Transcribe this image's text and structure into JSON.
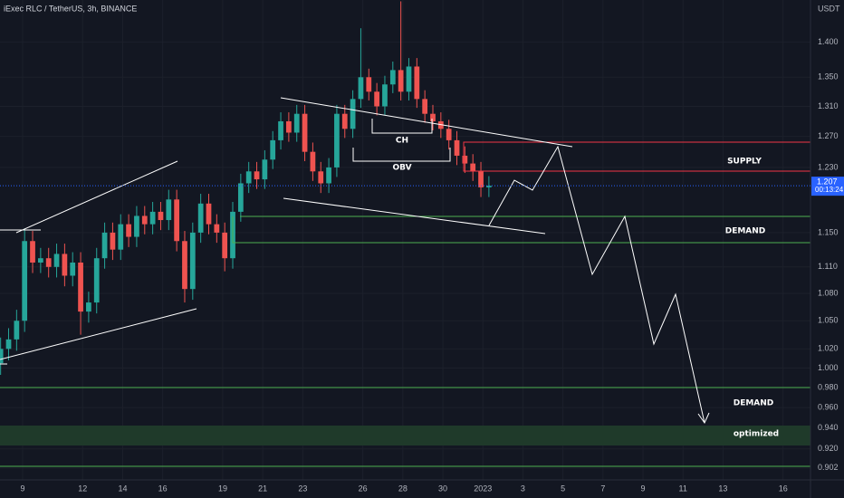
{
  "chart_data": {
    "type": "candlestick",
    "title": "iExec RLC / TetherUS, 3h, BINANCE",
    "axis_unit": "USDT",
    "log_scale": true,
    "grid": true,
    "up_color": "#26a69a",
    "down_color": "#ef5350",
    "last_price": 1.207,
    "countdown": "00:13:24",
    "annotations": {
      "supply": "SUPPLY",
      "demand": "DEMAND",
      "demand_low": "DEMAND",
      "optimized": "optimized",
      "ch": "CH",
      "obv": "OBV"
    },
    "ylim": [
      0.891,
      1.462
    ],
    "yticks": [
      {
        "value": 1.4,
        "label": "1.400"
      },
      {
        "value": 1.35,
        "label": "1.350"
      },
      {
        "value": 1.31,
        "label": "1.310"
      },
      {
        "value": 1.27,
        "label": "1.270"
      },
      {
        "value": 1.23,
        "label": "1.230"
      },
      {
        "value": 1.15,
        "label": "1.150"
      },
      {
        "value": 1.11,
        "label": "1.110"
      },
      {
        "value": 1.08,
        "label": "1.080"
      },
      {
        "value": 1.05,
        "label": "1.050"
      },
      {
        "value": 1.02,
        "label": "1.020"
      },
      {
        "value": 1.0,
        "label": "1.000"
      },
      {
        "value": 0.98,
        "label": "0.980"
      },
      {
        "value": 0.96,
        "label": "0.960"
      },
      {
        "value": 0.94,
        "label": "0.940"
      },
      {
        "value": 0.92,
        "label": "0.920"
      },
      {
        "value": 0.902,
        "label": "0.902"
      }
    ],
    "xlim": [
      -1.13,
      39.37
    ],
    "xticks": [
      {
        "value": 0,
        "label": "9"
      },
      {
        "value": 3,
        "label": "12"
      },
      {
        "value": 5,
        "label": "14"
      },
      {
        "value": 7,
        "label": "16"
      },
      {
        "value": 10,
        "label": "19"
      },
      {
        "value": 12,
        "label": "21"
      },
      {
        "value": 14,
        "label": "23"
      },
      {
        "value": 17,
        "label": "26"
      },
      {
        "value": 19,
        "label": "28"
      },
      {
        "value": 21,
        "label": "30"
      },
      {
        "value": 23,
        "label": "2023"
      },
      {
        "value": 25,
        "label": "3"
      },
      {
        "value": 27,
        "label": "5"
      },
      {
        "value": 29,
        "label": "7"
      },
      {
        "value": 31,
        "label": "9"
      },
      {
        "value": 33,
        "label": "11"
      },
      {
        "value": 35,
        "label": "13"
      },
      {
        "value": 38,
        "label": "16"
      }
    ],
    "x": [
      -1.1,
      -0.7,
      -0.3,
      0.1,
      0.5,
      0.9,
      1.3,
      1.7,
      2.1,
      2.5,
      2.9,
      3.3,
      3.7,
      4.1,
      4.5,
      4.9,
      5.3,
      5.7,
      6.1,
      6.5,
      6.9,
      7.3,
      7.7,
      8.1,
      8.5,
      8.9,
      9.3,
      9.7,
      10.1,
      10.5,
      10.9,
      11.3,
      11.7,
      12.1,
      12.5,
      12.9,
      13.3,
      13.7,
      14.1,
      14.5,
      14.9,
      15.3,
      15.7,
      16.1,
      16.5,
      16.9,
      17.3,
      17.7,
      18.1,
      18.5,
      18.9,
      19.3,
      19.7,
      20.1,
      20.5,
      20.9,
      21.3,
      21.7,
      22.1,
      22.5,
      22.9,
      23.3
    ],
    "open": [
      1.005,
      1.02,
      1.03,
      1.05,
      1.14,
      1.115,
      1.12,
      1.11,
      1.125,
      1.1,
      1.115,
      1.06,
      1.07,
      1.12,
      1.15,
      1.13,
      1.16,
      1.145,
      1.17,
      1.16,
      1.175,
      1.165,
      1.19,
      1.14,
      1.085,
      1.15,
      1.185,
      1.16,
      1.15,
      1.12,
      1.175,
      1.21,
      1.225,
      1.215,
      1.24,
      1.265,
      1.29,
      1.275,
      1.3,
      1.25,
      1.225,
      1.21,
      1.23,
      1.3,
      1.28,
      1.32,
      1.35,
      1.33,
      1.31,
      1.34,
      1.36,
      1.33,
      1.365,
      1.32,
      1.3,
      1.29,
      1.28,
      1.265,
      1.245,
      1.235,
      1.225,
      1.205
    ],
    "high": [
      1.032,
      1.042,
      1.062,
      1.155,
      1.152,
      1.132,
      1.132,
      1.137,
      1.137,
      1.127,
      1.127,
      1.082,
      1.132,
      1.162,
      1.162,
      1.172,
      1.172,
      1.182,
      1.182,
      1.187,
      1.187,
      1.202,
      1.202,
      1.152,
      1.162,
      1.197,
      1.197,
      1.172,
      1.162,
      1.187,
      1.222,
      1.237,
      1.237,
      1.252,
      1.277,
      1.302,
      1.302,
      1.312,
      1.312,
      1.262,
      1.237,
      1.242,
      1.312,
      1.312,
      1.332,
      1.42,
      1.362,
      1.342,
      1.352,
      1.372,
      1.46,
      1.377,
      1.377,
      1.332,
      1.312,
      1.302,
      1.292,
      1.277,
      1.257,
      1.247,
      1.237,
      1.219
    ],
    "low": [
      0.993,
      1.008,
      1.018,
      1.038,
      1.103,
      1.103,
      1.098,
      1.098,
      1.088,
      1.088,
      1.035,
      1.048,
      1.058,
      1.108,
      1.118,
      1.118,
      1.133,
      1.133,
      1.148,
      1.148,
      1.153,
      1.153,
      1.128,
      1.07,
      1.073,
      1.138,
      1.148,
      1.138,
      1.105,
      1.108,
      1.163,
      1.198,
      1.203,
      1.203,
      1.228,
      1.253,
      1.263,
      1.263,
      1.238,
      1.213,
      1.198,
      1.198,
      1.218,
      1.268,
      1.268,
      1.308,
      1.318,
      1.298,
      1.298,
      1.328,
      1.318,
      1.318,
      1.308,
      1.288,
      1.278,
      1.268,
      1.253,
      1.233,
      1.223,
      1.213,
      1.193,
      1.193
    ],
    "close": [
      1.02,
      1.03,
      1.05,
      1.14,
      1.115,
      1.12,
      1.11,
      1.125,
      1.1,
      1.115,
      1.06,
      1.07,
      1.12,
      1.15,
      1.13,
      1.16,
      1.145,
      1.17,
      1.16,
      1.175,
      1.165,
      1.19,
      1.14,
      1.085,
      1.15,
      1.185,
      1.16,
      1.15,
      1.12,
      1.175,
      1.21,
      1.225,
      1.215,
      1.24,
      1.265,
      1.29,
      1.275,
      1.3,
      1.25,
      1.225,
      1.21,
      1.23,
      1.3,
      1.28,
      1.32,
      1.35,
      1.33,
      1.31,
      1.34,
      1.36,
      1.33,
      1.365,
      1.32,
      1.3,
      1.29,
      1.28,
      1.265,
      1.245,
      1.235,
      1.225,
      1.205,
      1.207
    ]
  }
}
